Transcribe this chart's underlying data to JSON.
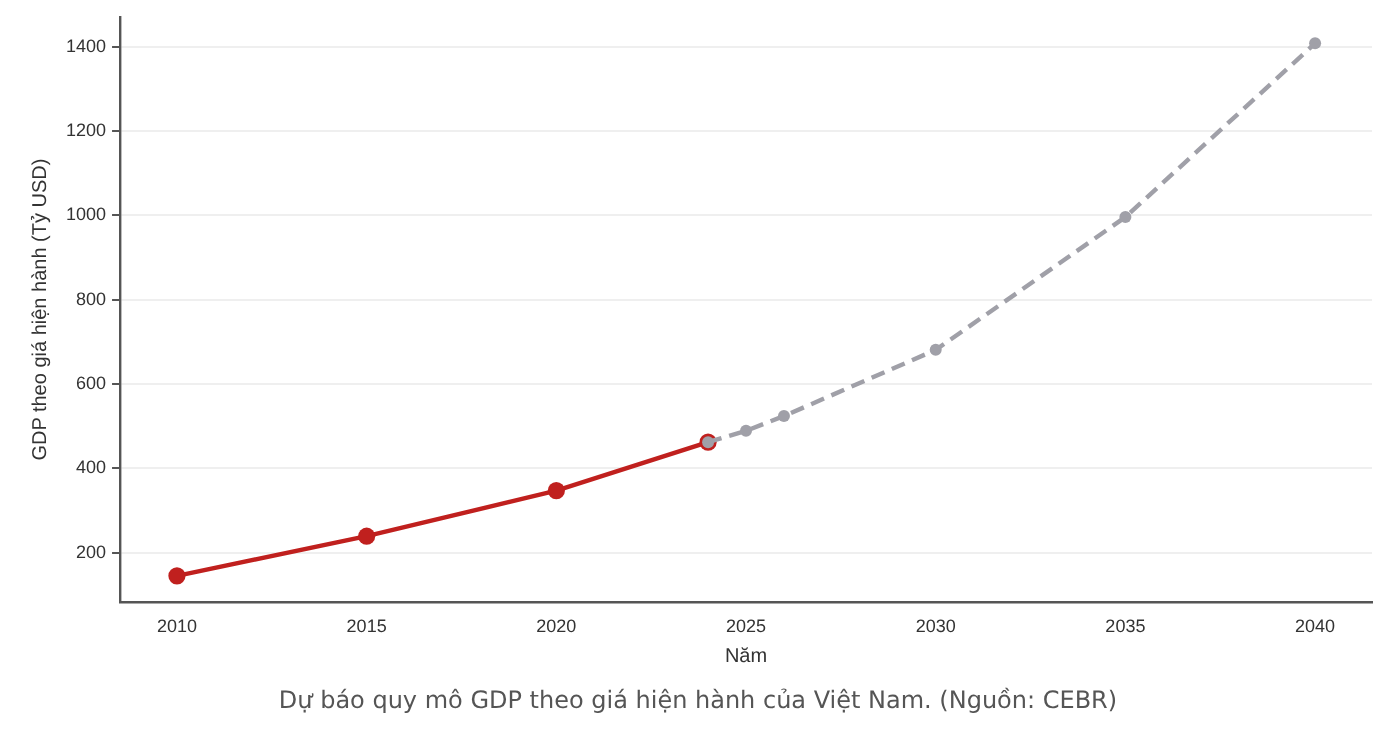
{
  "chart_data": {
    "type": "line",
    "xlabel": "Năm",
    "ylabel": "GDP theo giá hiện hành (Tỷ USD)",
    "annotations": [
      "Dự báo quy mô GDP theo giá hiện hành của Việt Nam. (Nguồn: CEBR)"
    ],
    "xlim": [
      2008.5,
      2041.5
    ],
    "xticks": [
      2010,
      2015,
      2020,
      2025,
      2030,
      2035,
      2040
    ],
    "ylim": [
      82,
      1471
    ],
    "yticks": [
      200,
      400,
      600,
      800,
      1000,
      1200,
      1400
    ],
    "grid": "y",
    "legend": false,
    "marker": "circle",
    "series": [
      {
        "color": "#c0201e",
        "line_style": "solid",
        "x": [
          2010,
          2015,
          2020,
          2024
        ],
        "values": [
          145,
          239,
          347,
          462
        ]
      },
      {
        "color": "#a0a0a8",
        "line_style": "dashed",
        "x": [
          2024,
          2025,
          2026,
          2030,
          2035,
          2040
        ],
        "values": [
          462,
          489,
          524,
          681,
          996,
          1408
        ]
      }
    ]
  }
}
